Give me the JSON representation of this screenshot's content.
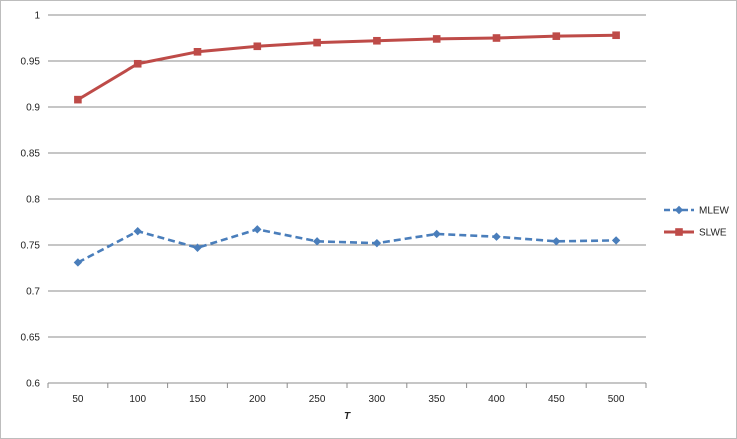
{
  "chart_data": {
    "type": "line",
    "title": "",
    "xlabel": "T",
    "ylabel": "",
    "categories": [
      "50",
      "100",
      "150",
      "200",
      "250",
      "300",
      "350",
      "400",
      "450",
      "500"
    ],
    "ylim": [
      0.6,
      1
    ],
    "yticks": [
      "0.6",
      "0.65",
      "0.7",
      "0.75",
      "0.8",
      "0.85",
      "0.9",
      "0.95",
      "1"
    ],
    "grid": true,
    "legend": "right",
    "series": [
      {
        "name": "MLEW",
        "values": [
          0.731,
          0.765,
          0.747,
          0.767,
          0.754,
          0.752,
          0.762,
          0.759,
          0.754,
          0.755
        ],
        "color": "#4a7ebb",
        "line_style": "dashed",
        "marker": "diamond"
      },
      {
        "name": "SLWE",
        "values": [
          0.908,
          0.947,
          0.96,
          0.966,
          0.97,
          0.972,
          0.974,
          0.975,
          0.977,
          0.978
        ],
        "color": "#be4b48",
        "line_style": "solid",
        "marker": "square"
      }
    ]
  }
}
